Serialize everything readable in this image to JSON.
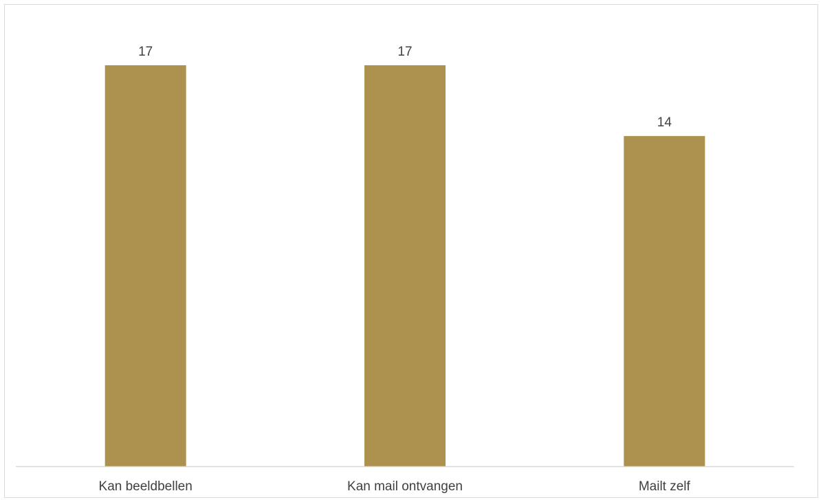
{
  "chart_data": {
    "type": "bar",
    "categories": [
      "Kan beeldbellen",
      "Kan mail ontvangen",
      "Mailt zelf"
    ],
    "values": [
      17,
      17,
      14
    ],
    "title": "",
    "xlabel": "",
    "ylabel": "",
    "ylim": [
      0,
      20
    ],
    "grid": false,
    "legend": "none",
    "data_labels": true,
    "colors": {
      "bar": "#ad914f",
      "axis": "#d9d9d9",
      "text": "#404040"
    }
  }
}
